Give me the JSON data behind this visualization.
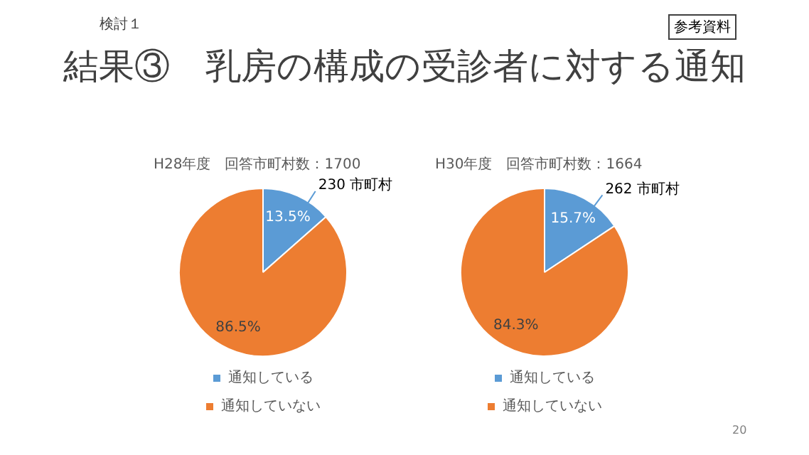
{
  "chart_data": [
    {
      "type": "pie",
      "title": "H28年度　回答市町村数：1700",
      "categories": [
        "通知している",
        "通知していない"
      ],
      "values": [
        13.5,
        86.5
      ],
      "colors": [
        "#5b9bd5",
        "#ed7d31"
      ],
      "value_labels": [
        "13.5%",
        "86.5%"
      ],
      "legend": "bottom",
      "annotations": [
        "検討１",
        "参考資料",
        "結果③　乳房の構成の受診者に対する通知",
        "20",
        {
          "text": "230 市町村",
          "x": "通知している"
        }
      ]
    },
    {
      "type": "pie",
      "title": "H30年度　回答市町村数：1664",
      "categories": [
        "通知している",
        "通知していない"
      ],
      "values": [
        15.7,
        84.3
      ],
      "colors": [
        "#5b9bd5",
        "#ed7d31"
      ],
      "value_labels": [
        "15.7%",
        "84.3%"
      ],
      "legend": "bottom",
      "annotations": [
        {
          "text": "262 市町村",
          "x": "通知している"
        }
      ]
    }
  ]
}
